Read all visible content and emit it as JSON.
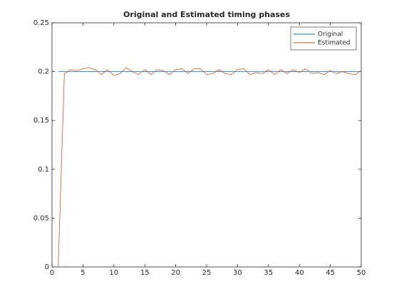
{
  "chart_data": {
    "type": "line",
    "title": "Original and Estimated timing phases",
    "x": [
      1,
      2,
      3,
      4,
      5,
      6,
      7,
      8,
      9,
      10,
      11,
      12,
      13,
      14,
      15,
      16,
      17,
      18,
      19,
      20,
      21,
      22,
      23,
      24,
      25,
      26,
      27,
      28,
      29,
      30,
      31,
      32,
      33,
      34,
      35,
      36,
      37,
      38,
      39,
      40,
      41,
      42,
      43,
      44,
      45,
      46,
      47,
      48,
      49,
      50
    ],
    "series": [
      {
        "name": "Original",
        "color": "#0072bd",
        "values": [
          0.2,
          0.2,
          0.2,
          0.2,
          0.2,
          0.2,
          0.2,
          0.2,
          0.2,
          0.2,
          0.2,
          0.2,
          0.2,
          0.2,
          0.2,
          0.2,
          0.2,
          0.2,
          0.2,
          0.2,
          0.2,
          0.2,
          0.2,
          0.2,
          0.2,
          0.2,
          0.2,
          0.2,
          0.2,
          0.2,
          0.2,
          0.2,
          0.2,
          0.2,
          0.2,
          0.2,
          0.2,
          0.2,
          0.2,
          0.2,
          0.2,
          0.2,
          0.2,
          0.2,
          0.2,
          0.2,
          0.2,
          0.2,
          0.2,
          0.2
        ]
      },
      {
        "name": "Estimated",
        "color": "#d95319",
        "values": [
          0,
          0.198,
          0.202,
          0.201,
          0.203,
          0.204,
          0.202,
          0.197,
          0.202,
          0.196,
          0.198,
          0.204,
          0.2,
          0.197,
          0.202,
          0.197,
          0.202,
          0.201,
          0.197,
          0.202,
          0.203,
          0.198,
          0.203,
          0.203,
          0.197,
          0.198,
          0.202,
          0.198,
          0.197,
          0.202,
          0.203,
          0.197,
          0.199,
          0.198,
          0.202,
          0.197,
          0.202,
          0.198,
          0.202,
          0.199,
          0.203,
          0.198,
          0.199,
          0.197,
          0.201,
          0.198,
          0.2,
          0.198,
          0.197,
          0.201
        ]
      }
    ],
    "xlim": [
      0,
      50
    ],
    "xticks": [
      0,
      5,
      10,
      15,
      20,
      25,
      30,
      35,
      40,
      45,
      50
    ],
    "ylim": [
      0,
      0.25
    ],
    "yticks": [
      0,
      0.05,
      0.1,
      0.15,
      0.2,
      0.25
    ],
    "legend": "top-right"
  }
}
